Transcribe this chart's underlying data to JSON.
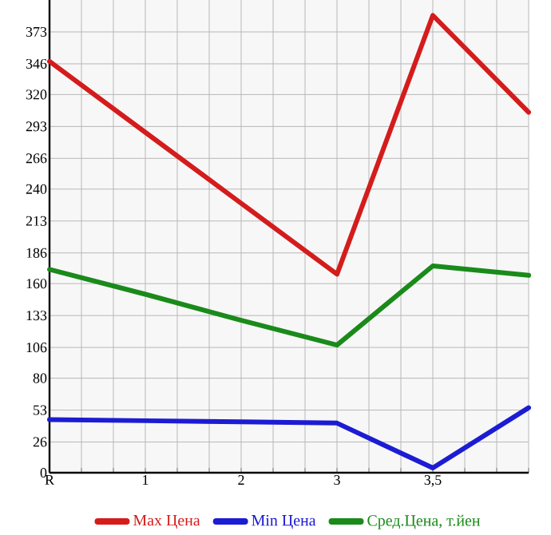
{
  "chart_data": {
    "type": "line",
    "categories": [
      "R",
      "1",
      "2",
      "3",
      "3,5",
      null
    ],
    "ylim": [
      0,
      400
    ],
    "yticks": [
      0,
      26,
      53,
      80,
      106,
      133,
      160,
      186,
      213,
      240,
      266,
      293,
      320,
      346,
      373
    ],
    "series": [
      {
        "name": "Max Цена",
        "color": "#d41c1c",
        "values": [
          348,
          288,
          228,
          168,
          387,
          305
        ]
      },
      {
        "name": "Min Цена",
        "color": "#1c1cd4",
        "values": [
          45,
          44,
          43,
          42,
          4,
          55
        ]
      },
      {
        "name": "Сред.Цена, т.йен",
        "color": "#1a8a1a",
        "values": [
          172,
          151,
          129,
          108,
          175,
          167
        ]
      }
    ],
    "grid": true,
    "legend": "bottom",
    "marker": "none",
    "line_style": "solid"
  }
}
